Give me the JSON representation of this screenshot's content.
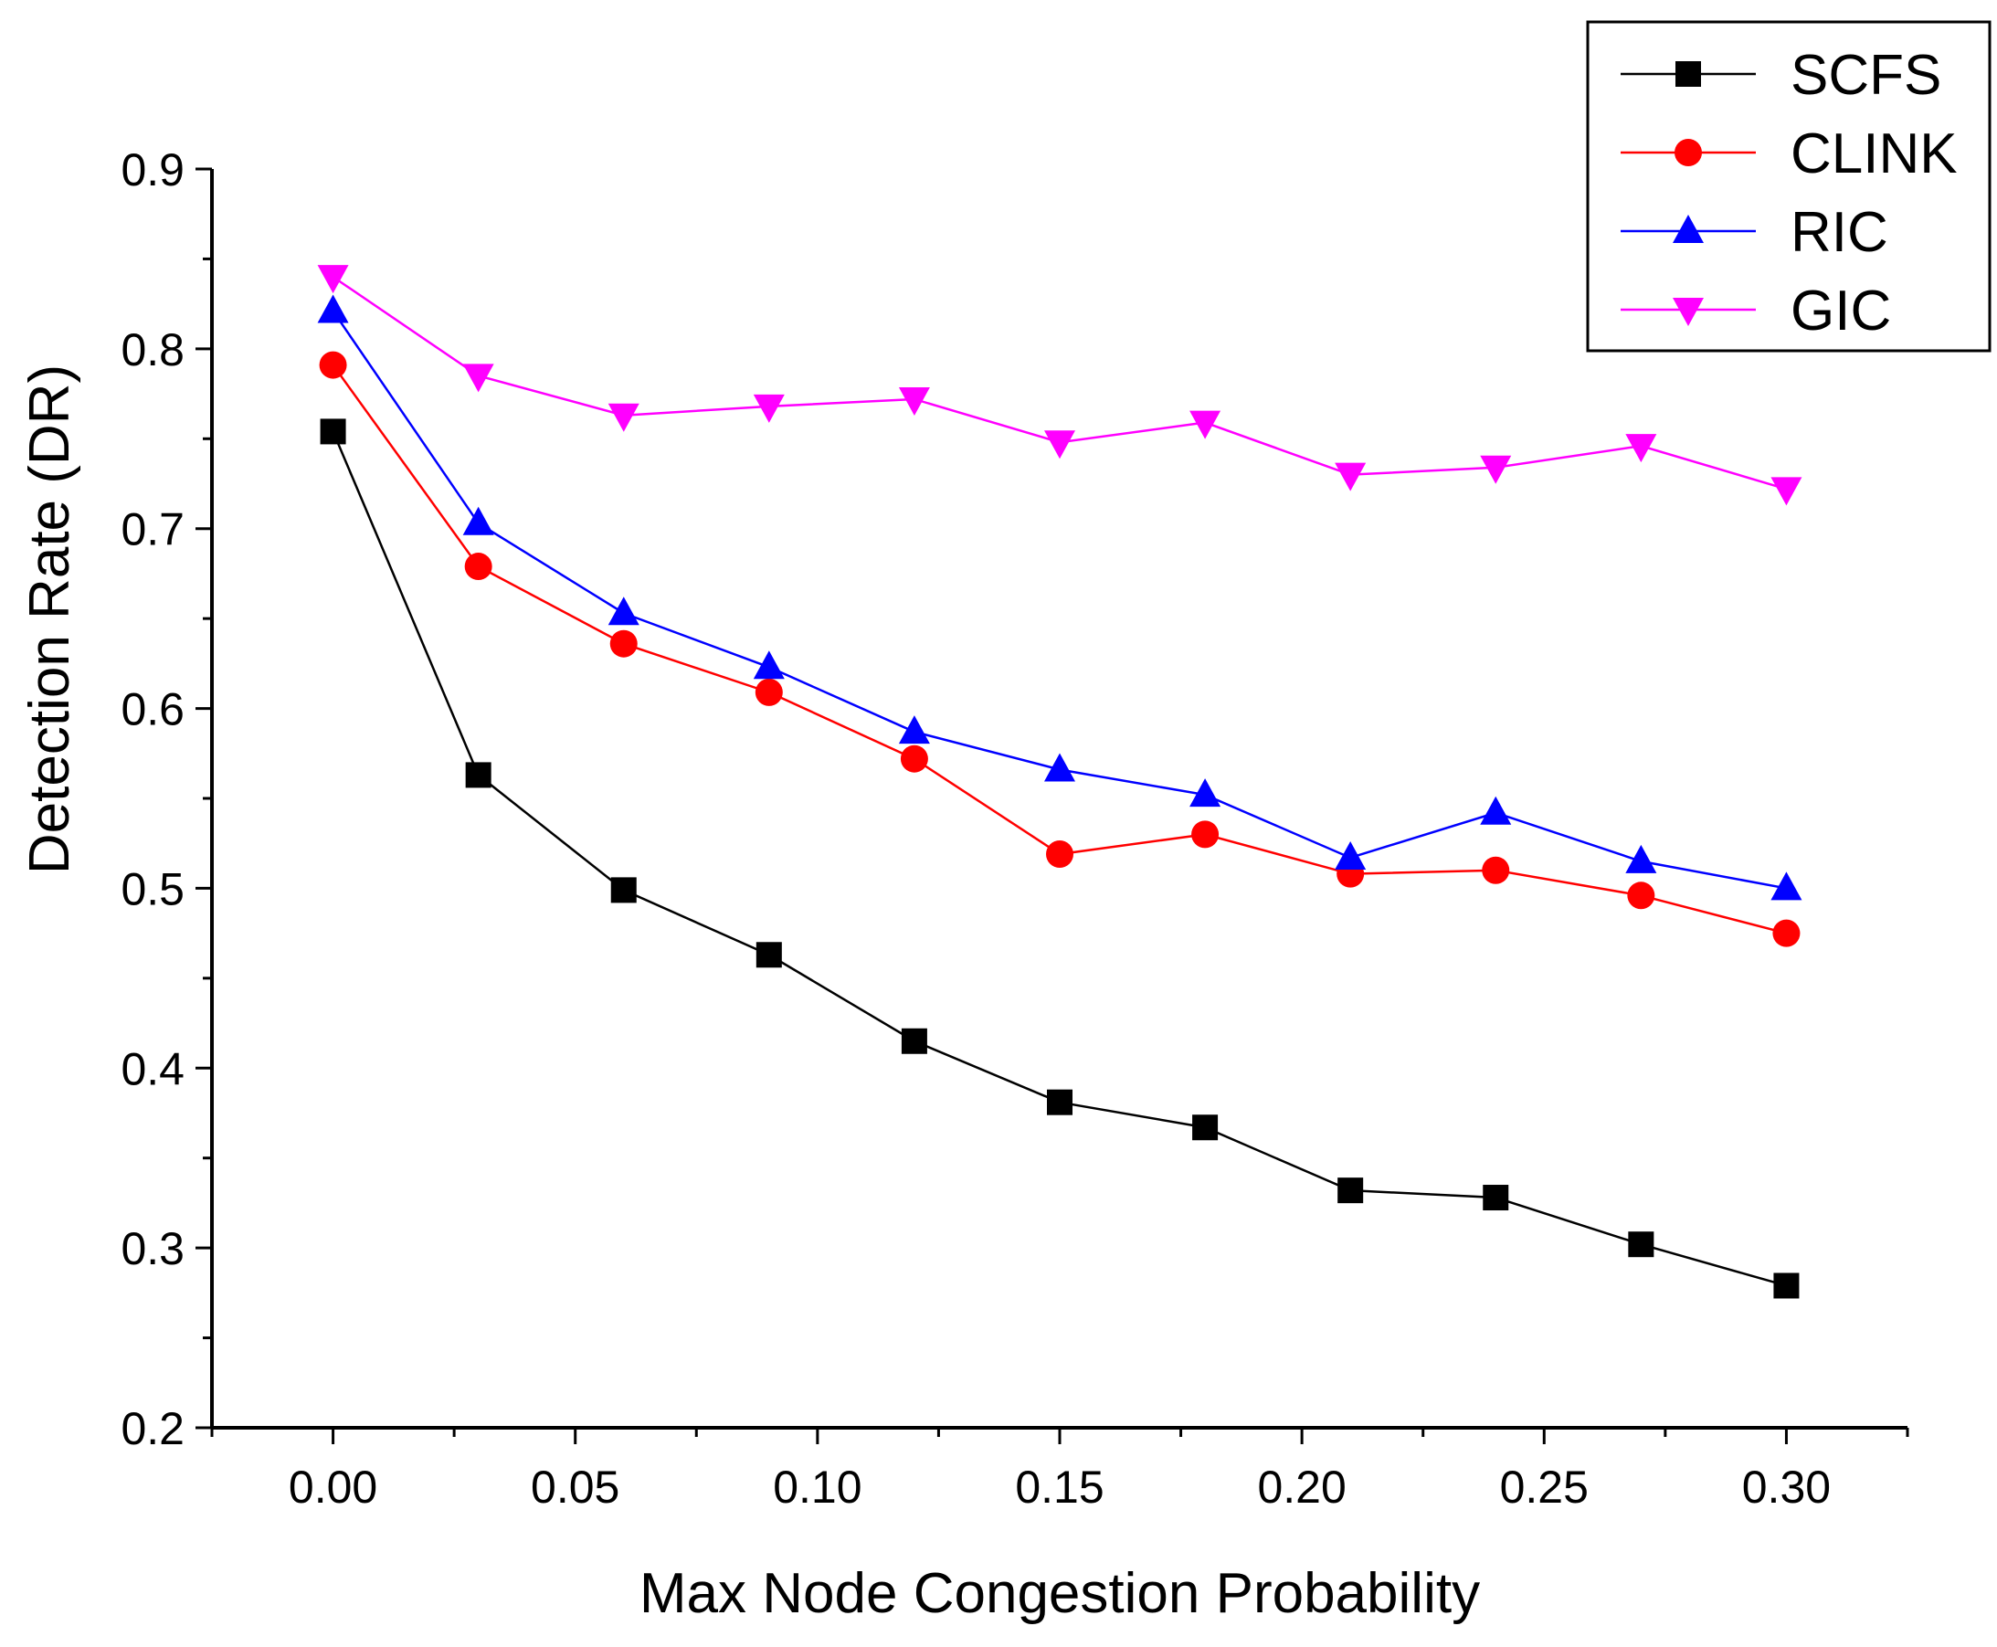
{
  "chart_data": {
    "type": "line",
    "title": "",
    "xlabel": "Max Node Congestion Probability",
    "ylabel": "Detection Rate (DR)",
    "xlim": [
      -0.025,
      0.325
    ],
    "ylim": [
      0.2,
      0.9
    ],
    "xticks": [
      0.0,
      0.05,
      0.1,
      0.15,
      0.2,
      0.25,
      0.3
    ],
    "xtick_labels": [
      "0.00",
      "0.05",
      "0.10",
      "0.15",
      "0.20",
      "0.25",
      "0.30"
    ],
    "yticks": [
      0.2,
      0.3,
      0.4,
      0.5,
      0.6,
      0.7,
      0.8,
      0.9
    ],
    "ytick_labels": [
      "0.2",
      "0.3",
      "0.4",
      "0.5",
      "0.6",
      "0.7",
      "0.8",
      "0.9"
    ],
    "grid": false,
    "legend_position": "top-right",
    "x": [
      0.0,
      0.03,
      0.06,
      0.09,
      0.12,
      0.15,
      0.18,
      0.21,
      0.24,
      0.27,
      0.3
    ],
    "series": [
      {
        "name": "SCFS",
        "color": "#000000",
        "marker": "square",
        "values": [
          0.754,
          0.563,
          0.499,
          0.463,
          0.415,
          0.381,
          0.367,
          0.332,
          0.328,
          0.302,
          0.279
        ]
      },
      {
        "name": "CLINK",
        "color": "#ff0000",
        "marker": "circle",
        "values": [
          0.791,
          0.679,
          0.636,
          0.609,
          0.572,
          0.519,
          0.53,
          0.508,
          0.51,
          0.496,
          0.475
        ]
      },
      {
        "name": "RIC",
        "color": "#0000ff",
        "marker": "triangle-up",
        "values": [
          0.821,
          0.703,
          0.653,
          0.623,
          0.587,
          0.566,
          0.552,
          0.517,
          0.542,
          0.515,
          0.5
        ]
      },
      {
        "name": "GIC",
        "color": "#ff00ff",
        "marker": "triangle-down",
        "values": [
          0.84,
          0.785,
          0.763,
          0.768,
          0.772,
          0.748,
          0.759,
          0.73,
          0.734,
          0.746,
          0.722
        ]
      }
    ]
  }
}
